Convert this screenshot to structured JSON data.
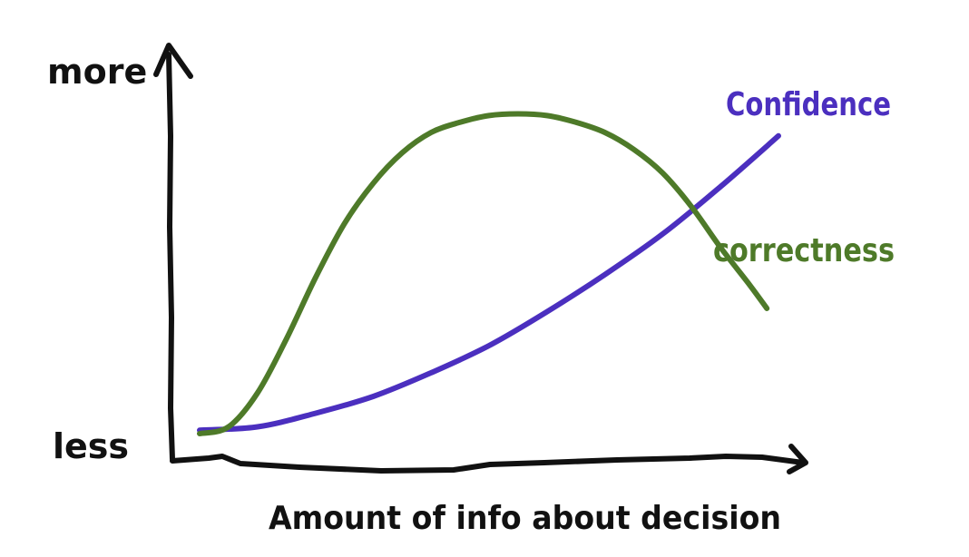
{
  "chart_data": {
    "type": "line",
    "title": "",
    "xlabel": "Amount of info about decision",
    "ylabel": "",
    "y_tick_labels": {
      "top": "more",
      "bottom": "less"
    },
    "xlim": [
      0,
      1
    ],
    "ylim": [
      0,
      1
    ],
    "grid": false,
    "legend": "inline labels at curve ends",
    "series": [
      {
        "name": "Confidence",
        "color": "#4b2fbf",
        "x": [
          0.0,
          0.1,
          0.2,
          0.3,
          0.4,
          0.5,
          0.6,
          0.7,
          0.8,
          0.9,
          1.0
        ],
        "y": [
          0.01,
          0.02,
          0.06,
          0.11,
          0.18,
          0.26,
          0.36,
          0.47,
          0.59,
          0.73,
          0.88
        ]
      },
      {
        "name": "correctness",
        "color": "#4e7a29",
        "x": [
          0.0,
          0.05,
          0.1,
          0.15,
          0.2,
          0.25,
          0.3,
          0.35,
          0.4,
          0.45,
          0.5,
          0.55,
          0.6,
          0.65,
          0.7,
          0.75,
          0.8,
          0.85,
          0.9,
          0.95,
          0.98
        ],
        "y": [
          0.0,
          0.02,
          0.12,
          0.28,
          0.46,
          0.62,
          0.74,
          0.83,
          0.89,
          0.92,
          0.94,
          0.945,
          0.94,
          0.92,
          0.89,
          0.84,
          0.77,
          0.67,
          0.55,
          0.44,
          0.37
        ]
      }
    ]
  }
}
